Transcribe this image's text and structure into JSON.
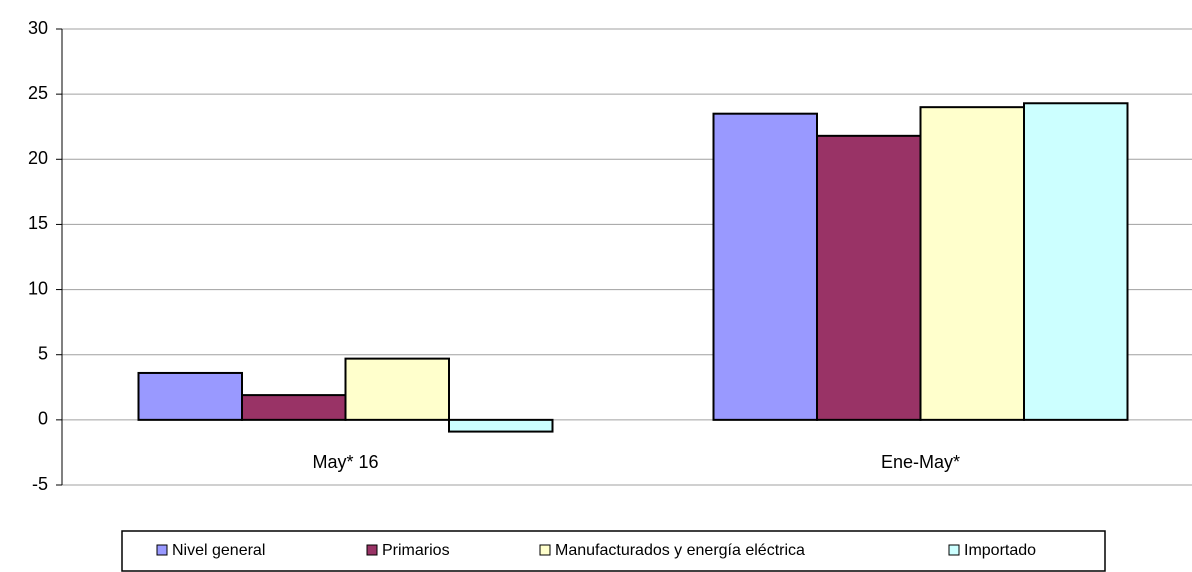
{
  "chart_data": {
    "type": "bar",
    "categories": [
      "May* 16",
      "Ene-May*"
    ],
    "series": [
      {
        "name": "Nivel general",
        "color": "#9999ff",
        "values": [
          3.6,
          23.5
        ]
      },
      {
        "name": "Primarios",
        "color": "#993366",
        "values": [
          1.9,
          21.8
        ]
      },
      {
        "name": "Manufacturados y energía eléctrica",
        "color": "#ffffcc",
        "values": [
          4.7,
          24.0
        ]
      },
      {
        "name": "Importado",
        "color": "#ccffff",
        "values": [
          -0.9,
          24.3
        ]
      }
    ],
    "ylim": [
      -5,
      30
    ],
    "yticks": [
      -5,
      0,
      5,
      10,
      15,
      20,
      25,
      30
    ],
    "grid": true,
    "legend": "bottom"
  }
}
